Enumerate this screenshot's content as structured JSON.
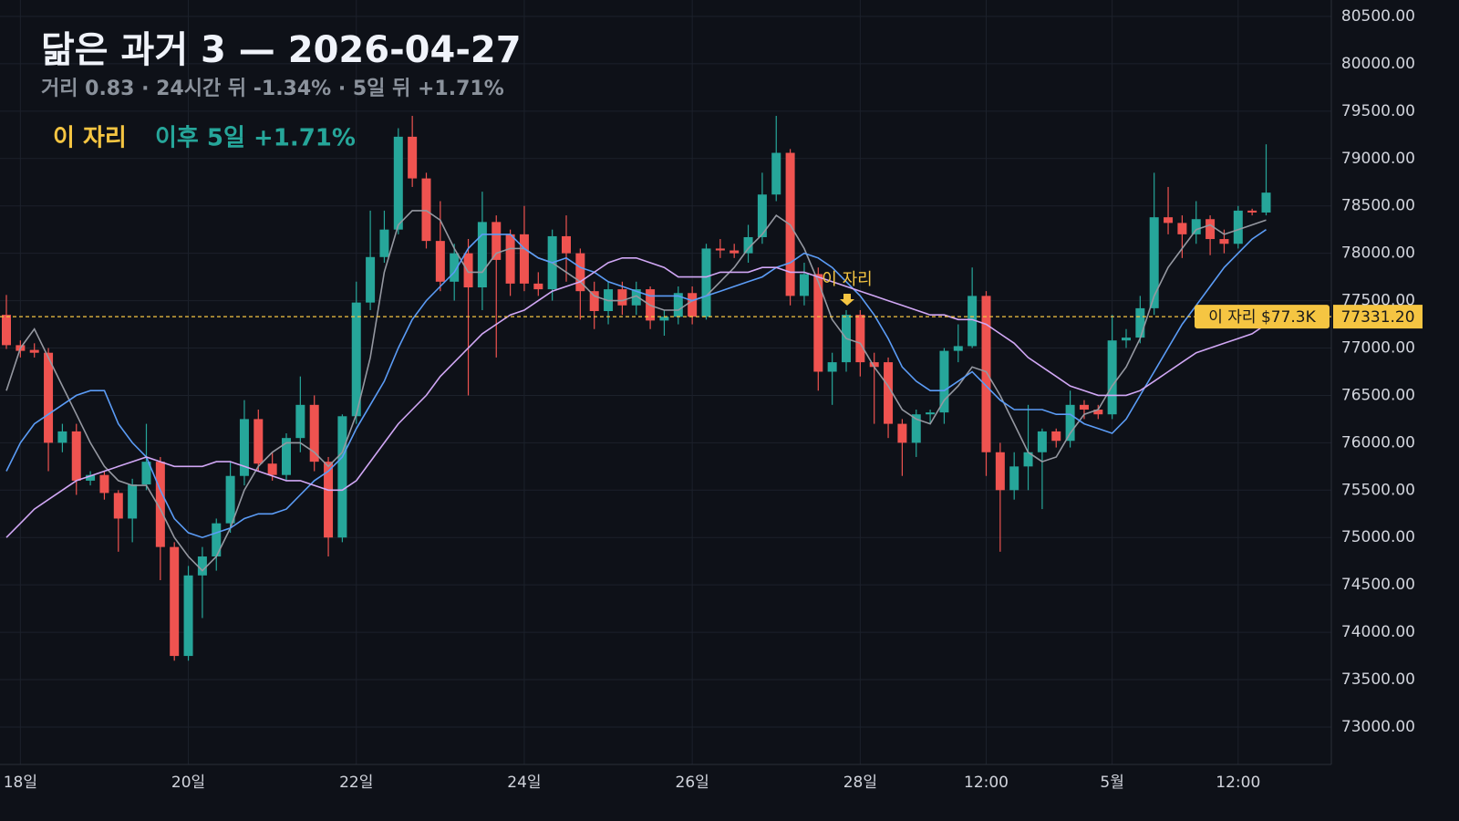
{
  "chart_data": {
    "type": "candlestick",
    "title": "닮은 과거 3 — 2026-04-27",
    "subtitle": "거리 0.83 · 24시간 뒤 -1.34% · 5일 뒤 +1.71%",
    "legend_label": "이 자리",
    "legend_note": "이후 5일 +1.71%",
    "marker_label": "이 자리",
    "reference": {
      "value": 77331.2,
      "label": "77331.20",
      "tag": "이 자리 $77.3K",
      "color": "#f5c542"
    },
    "up_color": "#26a69a",
    "down_color": "#ef5350",
    "grid": true,
    "categories": [
      null,
      "18일",
      null,
      null,
      null,
      null,
      null,
      null,
      null,
      null,
      null,
      null,
      null,
      "20일",
      null,
      null,
      null,
      null,
      null,
      null,
      null,
      null,
      null,
      null,
      null,
      "22일",
      null,
      null,
      null,
      null,
      null,
      null,
      null,
      null,
      null,
      null,
      null,
      "24일",
      null,
      null,
      null,
      null,
      null,
      null,
      null,
      null,
      null,
      null,
      null,
      "26일",
      null,
      null,
      null,
      null,
      null,
      null,
      null,
      null,
      null,
      null,
      null,
      "28일",
      null,
      null,
      null,
      null,
      null,
      null,
      null,
      null,
      "12:00",
      null,
      null,
      null,
      null,
      null,
      null,
      null,
      null,
      "5월",
      null,
      null,
      null,
      null,
      null,
      null,
      null,
      null,
      "12:00",
      null,
      null
    ],
    "open": [
      77350,
      77030,
      76980,
      76950,
      76000,
      76120,
      75600,
      75660,
      75470,
      75200,
      75560,
      75800,
      74900,
      73750,
      74600,
      74800,
      75150,
      75650,
      76250,
      75780,
      75660,
      76050,
      76400,
      75800,
      75000,
      76280,
      77480,
      77960,
      78250,
      79230,
      78790,
      78130,
      77700,
      78000,
      77640,
      78330,
      78200,
      78200,
      77680,
      77620,
      78180,
      78000,
      77600,
      77390,
      77620,
      77450,
      77620,
      77290,
      77330,
      77580,
      77330,
      78050,
      78030,
      78000,
      78170,
      78620,
      79060,
      77550,
      77780,
      76750,
      76850,
      77350,
      76850,
      76850,
      76200,
      76000,
      76300,
      76320,
      76970,
      77020,
      77550,
      75900,
      75500,
      75750,
      75900,
      76120,
      76020,
      76400,
      76350,
      76300,
      77080,
      77110,
      77420,
      78380,
      78320,
      78200,
      78360,
      78150,
      78100,
      78450,
      78430
    ],
    "high": [
      77560,
      77080,
      77050,
      77000,
      76200,
      76200,
      75700,
      75700,
      75500,
      75620,
      76200,
      75850,
      74950,
      74700,
      74900,
      75200,
      75800,
      76450,
      76350,
      75900,
      76100,
      76700,
      76500,
      75850,
      76300,
      77700,
      78450,
      78450,
      79320,
      79450,
      78850,
      78550,
      78100,
      78150,
      78650,
      78400,
      78250,
      78500,
      77800,
      78250,
      78400,
      78050,
      77700,
      77700,
      77700,
      77700,
      77650,
      77400,
      77650,
      77650,
      78100,
      78150,
      78100,
      78300,
      78850,
      79450,
      79100,
      77900,
      77850,
      76950,
      77400,
      77400,
      76950,
      76900,
      76250,
      76350,
      76350,
      77000,
      77250,
      77850,
      77600,
      76000,
      75900,
      76400,
      76150,
      76150,
      76550,
      76450,
      76400,
      77350,
      77200,
      77550,
      78850,
      78700,
      78400,
      78550,
      78400,
      78250,
      78500,
      78470,
      79150
    ],
    "low": [
      76990,
      76900,
      76900,
      75700,
      75900,
      75450,
      75550,
      75400,
      74850,
      74950,
      75500,
      74550,
      73700,
      73700,
      74150,
      74650,
      75050,
      75550,
      75700,
      75600,
      75600,
      75900,
      75700,
      74800,
      74950,
      76200,
      77400,
      77900,
      78200,
      78700,
      78050,
      77600,
      77500,
      76500,
      77400,
      76900,
      77550,
      77600,
      77550,
      77500,
      77700,
      77300,
      77200,
      77250,
      77350,
      77350,
      77200,
      77130,
      77250,
      77250,
      77300,
      77950,
      77950,
      77900,
      78100,
      78550,
      77450,
      77450,
      76550,
      76400,
      76750,
      76700,
      76200,
      76050,
      75650,
      75850,
      76200,
      76200,
      76850,
      77000,
      75650,
      74850,
      75400,
      75500,
      75300,
      75950,
      75950,
      76250,
      76250,
      76250,
      77000,
      77050,
      77350,
      78200,
      77950,
      78100,
      77980,
      78000,
      78050,
      78400,
      78400
    ],
    "close": [
      77030,
      76970,
      76950,
      76000,
      76120,
      75600,
      75660,
      75470,
      75200,
      75560,
      75800,
      74900,
      73750,
      74600,
      74800,
      75150,
      75650,
      76250,
      75780,
      75660,
      76050,
      76400,
      75800,
      75000,
      76280,
      77480,
      77960,
      78250,
      79230,
      78790,
      78130,
      77700,
      78000,
      77640,
      78330,
      77930,
      77680,
      77680,
      77620,
      78180,
      78000,
      77600,
      77390,
      77620,
      77450,
      77620,
      77290,
      77330,
      77580,
      77330,
      78050,
      78030,
      78000,
      78170,
      78620,
      79060,
      77550,
      77780,
      76750,
      76850,
      77350,
      76850,
      76800,
      76200,
      76000,
      76300,
      76320,
      76970,
      77020,
      77550,
      75900,
      75500,
      75750,
      75900,
      76120,
      76020,
      76400,
      76350,
      76300,
      77080,
      77110,
      77420,
      78380,
      78320,
      78200,
      78360,
      78150,
      78100,
      78450,
      78430,
      78640
    ],
    "lines": [
      {
        "color": "#9598a1",
        "values": [
          76550,
          77000,
          77200,
          76900,
          76600,
          76300,
          76000,
          75750,
          75600,
          75550,
          75550,
          75300,
          75000,
          74800,
          74650,
          74800,
          75100,
          75500,
          75750,
          75900,
          76000,
          76000,
          75900,
          75750,
          75900,
          76300,
          76900,
          77800,
          78300,
          78450,
          78450,
          78350,
          78050,
          77800,
          77800,
          78000,
          78050,
          78050,
          77950,
          77900,
          77800,
          77700,
          77550,
          77500,
          77500,
          77550,
          77450,
          77400,
          77400,
          77500,
          77550,
          77700,
          77850,
          78050,
          78200,
          78400,
          78300,
          78050,
          77700,
          77300,
          77100,
          77050,
          76800,
          76600,
          76350,
          76250,
          76200,
          76450,
          76600,
          76800,
          76750,
          76500,
          76200,
          75900,
          75800,
          75850,
          76100,
          76300,
          76350,
          76600,
          76800,
          77100,
          77550,
          77850,
          78050,
          78250,
          78300,
          78200,
          78250,
          78300,
          78350
        ]
      },
      {
        "color": "#5b9cf6",
        "values": [
          75700,
          76000,
          76200,
          76300,
          76400,
          76500,
          76550,
          76550,
          76200,
          76000,
          75850,
          75500,
          75200,
          75050,
          75000,
          75050,
          75100,
          75200,
          75250,
          75250,
          75300,
          75450,
          75600,
          75700,
          75850,
          76150,
          76400,
          76650,
          77000,
          77300,
          77500,
          77650,
          77800,
          78050,
          78200,
          78200,
          78200,
          78050,
          77950,
          77900,
          77950,
          77850,
          77800,
          77700,
          77650,
          77600,
          77550,
          77550,
          77550,
          77500,
          77550,
          77600,
          77650,
          77700,
          77750,
          77850,
          77900,
          78000,
          77950,
          77850,
          77700,
          77550,
          77350,
          77100,
          76800,
          76650,
          76550,
          76550,
          76650,
          76750,
          76600,
          76450,
          76350,
          76350,
          76350,
          76300,
          76300,
          76200,
          76150,
          76100,
          76250,
          76500,
          76750,
          77000,
          77250,
          77450,
          77650,
          77850,
          78000,
          78150,
          78250
        ]
      },
      {
        "color": "#d1a7f5",
        "values": [
          75000,
          75150,
          75300,
          75400,
          75500,
          75600,
          75650,
          75700,
          75750,
          75800,
          75850,
          75800,
          75750,
          75750,
          75750,
          75800,
          75800,
          75750,
          75700,
          75650,
          75600,
          75600,
          75550,
          75500,
          75500,
          75600,
          75800,
          76000,
          76200,
          76350,
          76500,
          76700,
          76850,
          77000,
          77150,
          77250,
          77350,
          77400,
          77500,
          77600,
          77650,
          77700,
          77800,
          77900,
          77950,
          77950,
          77900,
          77850,
          77750,
          77750,
          77750,
          77800,
          77800,
          77800,
          77850,
          77850,
          77800,
          77800,
          77750,
          77700,
          77650,
          77600,
          77550,
          77500,
          77450,
          77400,
          77350,
          77350,
          77300,
          77300,
          77250,
          77150,
          77050,
          76900,
          76800,
          76700,
          76600,
          76550,
          76500,
          76500,
          76500,
          76550,
          76650,
          76750,
          76850,
          76950,
          77000,
          77050,
          77100,
          77150,
          77250
        ]
      }
    ],
    "ylim": [
      72605,
      80673
    ],
    "yticks": [
      {
        "value": 73000,
        "label": "73000.00"
      },
      {
        "value": 73500,
        "label": "73500.00"
      },
      {
        "value": 74000,
        "label": "74000.00"
      },
      {
        "value": 74500,
        "label": "74500.00"
      },
      {
        "value": 75000,
        "label": "75000.00"
      },
      {
        "value": 75500,
        "label": "75500.00"
      },
      {
        "value": 76000,
        "label": "76000.00"
      },
      {
        "value": 76500,
        "label": "76500.00"
      },
      {
        "value": 77000,
        "label": "77000.00"
      },
      {
        "value": 77500,
        "label": "77500.00"
      },
      {
        "value": 78000,
        "label": "78000.00"
      },
      {
        "value": 78500,
        "label": "78500.00"
      },
      {
        "value": 79000,
        "label": "79000.00"
      },
      {
        "value": 79500,
        "label": "79500.00"
      },
      {
        "value": 80000,
        "label": "80000.00"
      },
      {
        "value": 80500,
        "label": "80500.00"
      }
    ]
  }
}
